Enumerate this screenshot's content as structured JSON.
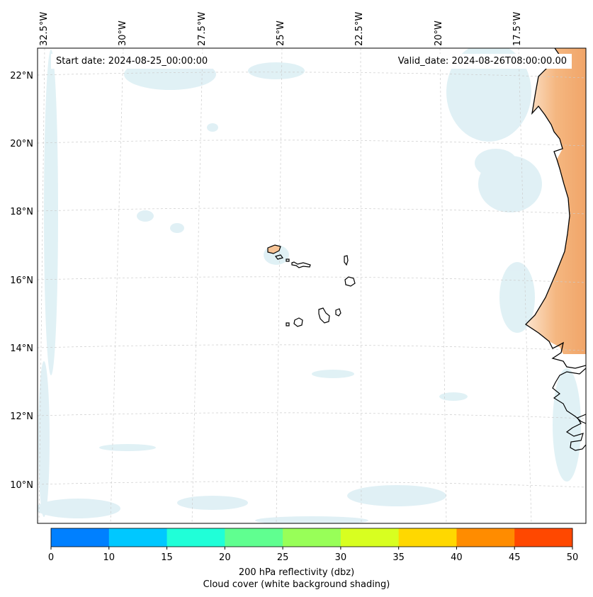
{
  "annotations": {
    "start_date": "Start date: 2024-08-25_00:00:00",
    "valid_date": "Valid_date: 2024-08-26T08:00:00.00"
  },
  "longitude_labels": [
    "32.5°W",
    "30°W",
    "27.5°W",
    "25°W",
    "22.5°W",
    "20°W",
    "17.5°W"
  ],
  "latitude_labels": [
    "22°N",
    "20°N",
    "18°N",
    "16°N",
    "14°N",
    "12°N",
    "10°N"
  ],
  "colorbar": {
    "ticks": [
      "0",
      "10",
      "15",
      "20",
      "25",
      "30",
      "35",
      "40",
      "45",
      "50"
    ],
    "colors": [
      "#0080ff",
      "#00c8ff",
      "#20ffd8",
      "#60ff90",
      "#98ff58",
      "#d8ff20",
      "#ffd800",
      "#ff8c00",
      "#ff4800"
    ],
    "label_line1": "200 hPa reflectivity (dbz)",
    "label_line2": "Cloud cover (white background shading)"
  },
  "colors": {
    "cloud_shade": "#cfe8f0",
    "land_shade": "#f2a463",
    "coastline": "#000000",
    "gridline": "#cccccc"
  }
}
